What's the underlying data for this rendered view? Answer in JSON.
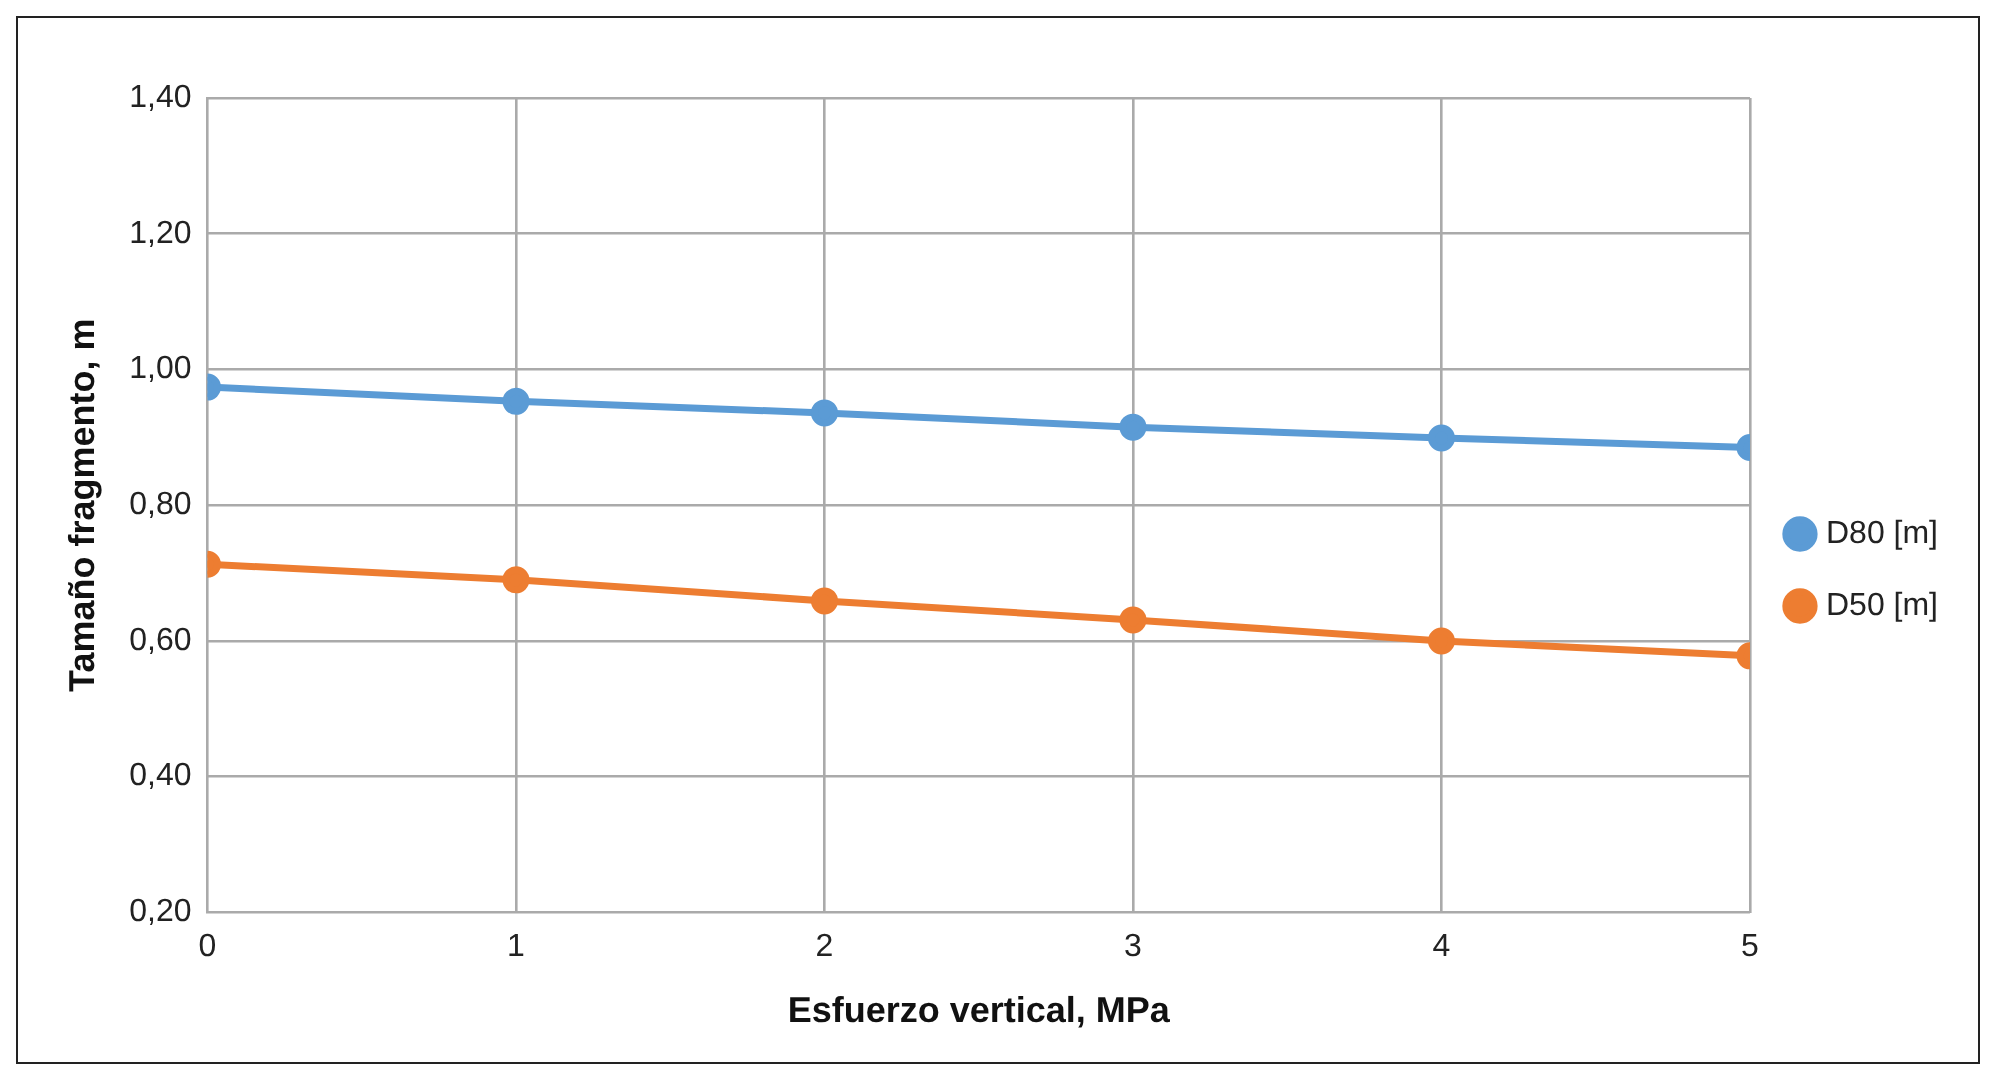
{
  "chart_data": {
    "type": "line",
    "xlabel": "Esfuerzo vertical, MPa",
    "ylabel": "Tamaño fragmento, m",
    "x": [
      0,
      1,
      2,
      3,
      4,
      5
    ],
    "series": [
      {
        "name": "D80 [m]",
        "color": "#5b9bd5",
        "values": [
          0.974,
          0.953,
          0.936,
          0.915,
          0.899,
          0.885
        ]
      },
      {
        "name": "D50 [m]",
        "color": "#ed7d31",
        "values": [
          0.713,
          0.69,
          0.659,
          0.631,
          0.6,
          0.578
        ]
      }
    ],
    "xlim": [
      0,
      5
    ],
    "xticks": [
      0,
      1,
      2,
      3,
      4,
      5
    ],
    "ylim": [
      0.2,
      1.4
    ],
    "yticks": [
      {
        "value": 0.2,
        "label": "0,20"
      },
      {
        "value": 0.4,
        "label": "0,40"
      },
      {
        "value": 0.6,
        "label": "0,60"
      },
      {
        "value": 0.8,
        "label": "0,80"
      },
      {
        "value": 1.0,
        "label": "1,00"
      },
      {
        "value": 1.2,
        "label": "1,20"
      },
      {
        "value": 1.4,
        "label": "1,40"
      }
    ],
    "grid": true,
    "legend": "right",
    "marker": "circle",
    "line_style": "solid"
  }
}
